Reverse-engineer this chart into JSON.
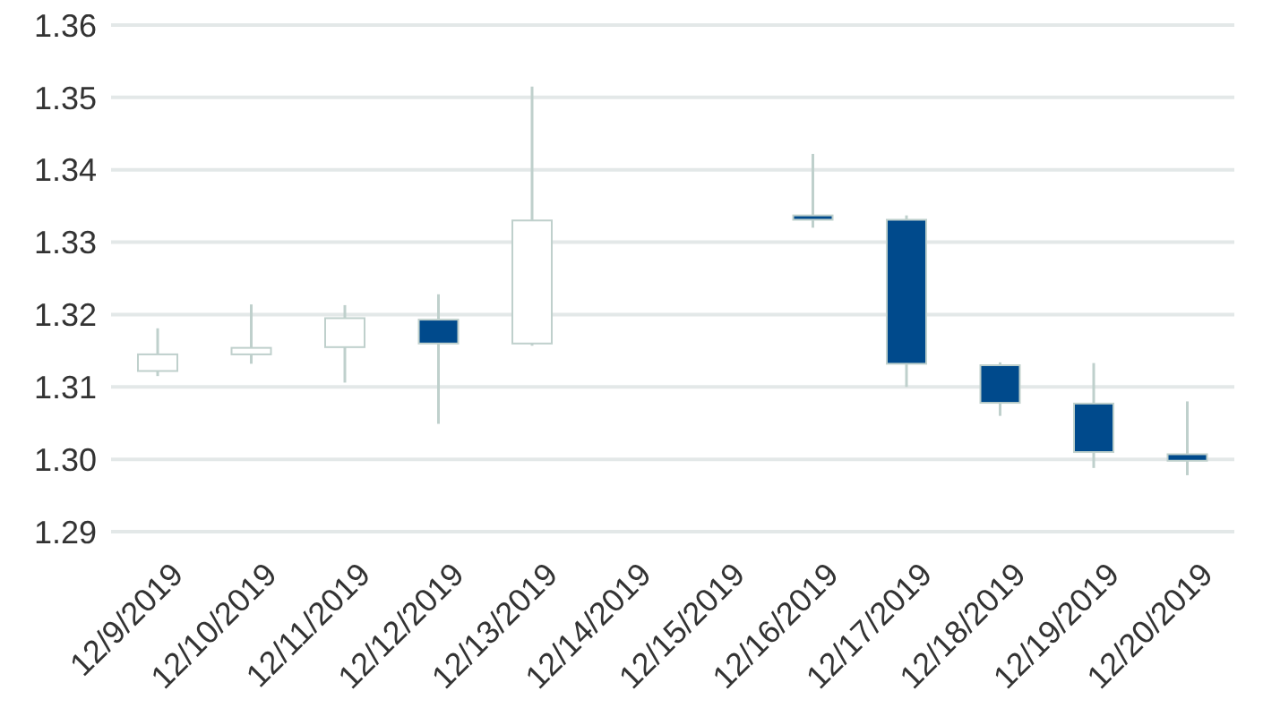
{
  "chart_data": {
    "type": "candlestick",
    "categories": [
      "12/9/2019",
      "12/10/2019",
      "12/11/2019",
      "12/12/2019",
      "12/13/2019",
      "12/14/2019",
      "12/15/2019",
      "12/16/2019",
      "12/17/2019",
      "12/18/2019",
      "12/19/2019",
      "12/20/2019"
    ],
    "ohlc": [
      [
        1.3122,
        1.3181,
        1.3115,
        1.3145
      ],
      [
        1.3145,
        1.3214,
        1.3132,
        1.3154
      ],
      [
        1.3155,
        1.3213,
        1.3106,
        1.3195
      ],
      [
        1.3193,
        1.3228,
        1.3049,
        1.316
      ],
      [
        1.316,
        1.3515,
        1.3157,
        1.333
      ],
      null,
      null,
      [
        1.3337,
        1.3422,
        1.332,
        1.3331
      ],
      [
        1.3331,
        1.3337,
        1.31,
        1.3132
      ],
      [
        1.313,
        1.3134,
        1.306,
        1.3078
      ],
      [
        1.3077,
        1.3133,
        1.2988,
        1.301
      ],
      [
        1.3007,
        1.308,
        1.2978,
        1.2998
      ]
    ],
    "colors": [
      "#ffffff",
      "#ffffff",
      "#ffffff",
      "#004a8c",
      "#ffffff",
      null,
      null,
      "#004a8c",
      "#004a8c",
      "#004a8c",
      "#004a8c",
      "#004a8c"
    ],
    "ylim": [
      1.29,
      1.36
    ],
    "yticks": [
      1.29,
      {
        "value": 1.3,
        "label": "1.30"
      },
      1.31,
      1.32,
      1.33,
      1.34,
      1.35,
      1.36
    ],
    "grid": "y"
  }
}
